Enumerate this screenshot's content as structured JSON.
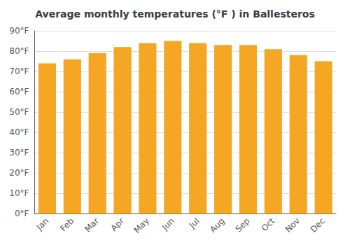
{
  "chart_data": {
    "type": "bar",
    "title": "Average monthly temperatures (°F ) in Ballesteros",
    "categories": [
      "Jan",
      "Feb",
      "Mar",
      "Apr",
      "May",
      "Jun",
      "Jul",
      "Aug",
      "Sep",
      "Oct",
      "Nov",
      "Dec"
    ],
    "values": [
      74,
      76,
      79,
      82,
      84,
      85,
      84,
      83,
      83,
      81,
      78,
      75
    ],
    "color": "#F5A623",
    "ylim": [
      0,
      90
    ],
    "yticks": [
      {
        "value": 0,
        "label": "0°F"
      },
      {
        "value": 10,
        "label": "10°F"
      },
      {
        "value": 20,
        "label": "20°F"
      },
      {
        "value": 30,
        "label": "30°F"
      },
      {
        "value": 40,
        "label": "40°F"
      },
      {
        "value": 50,
        "label": "50°F"
      },
      {
        "value": 60,
        "label": "60°F"
      },
      {
        "value": 70,
        "label": "70°F"
      },
      {
        "value": 80,
        "label": "80°F"
      },
      {
        "value": 90,
        "label": "90°F"
      }
    ],
    "grid": true
  }
}
